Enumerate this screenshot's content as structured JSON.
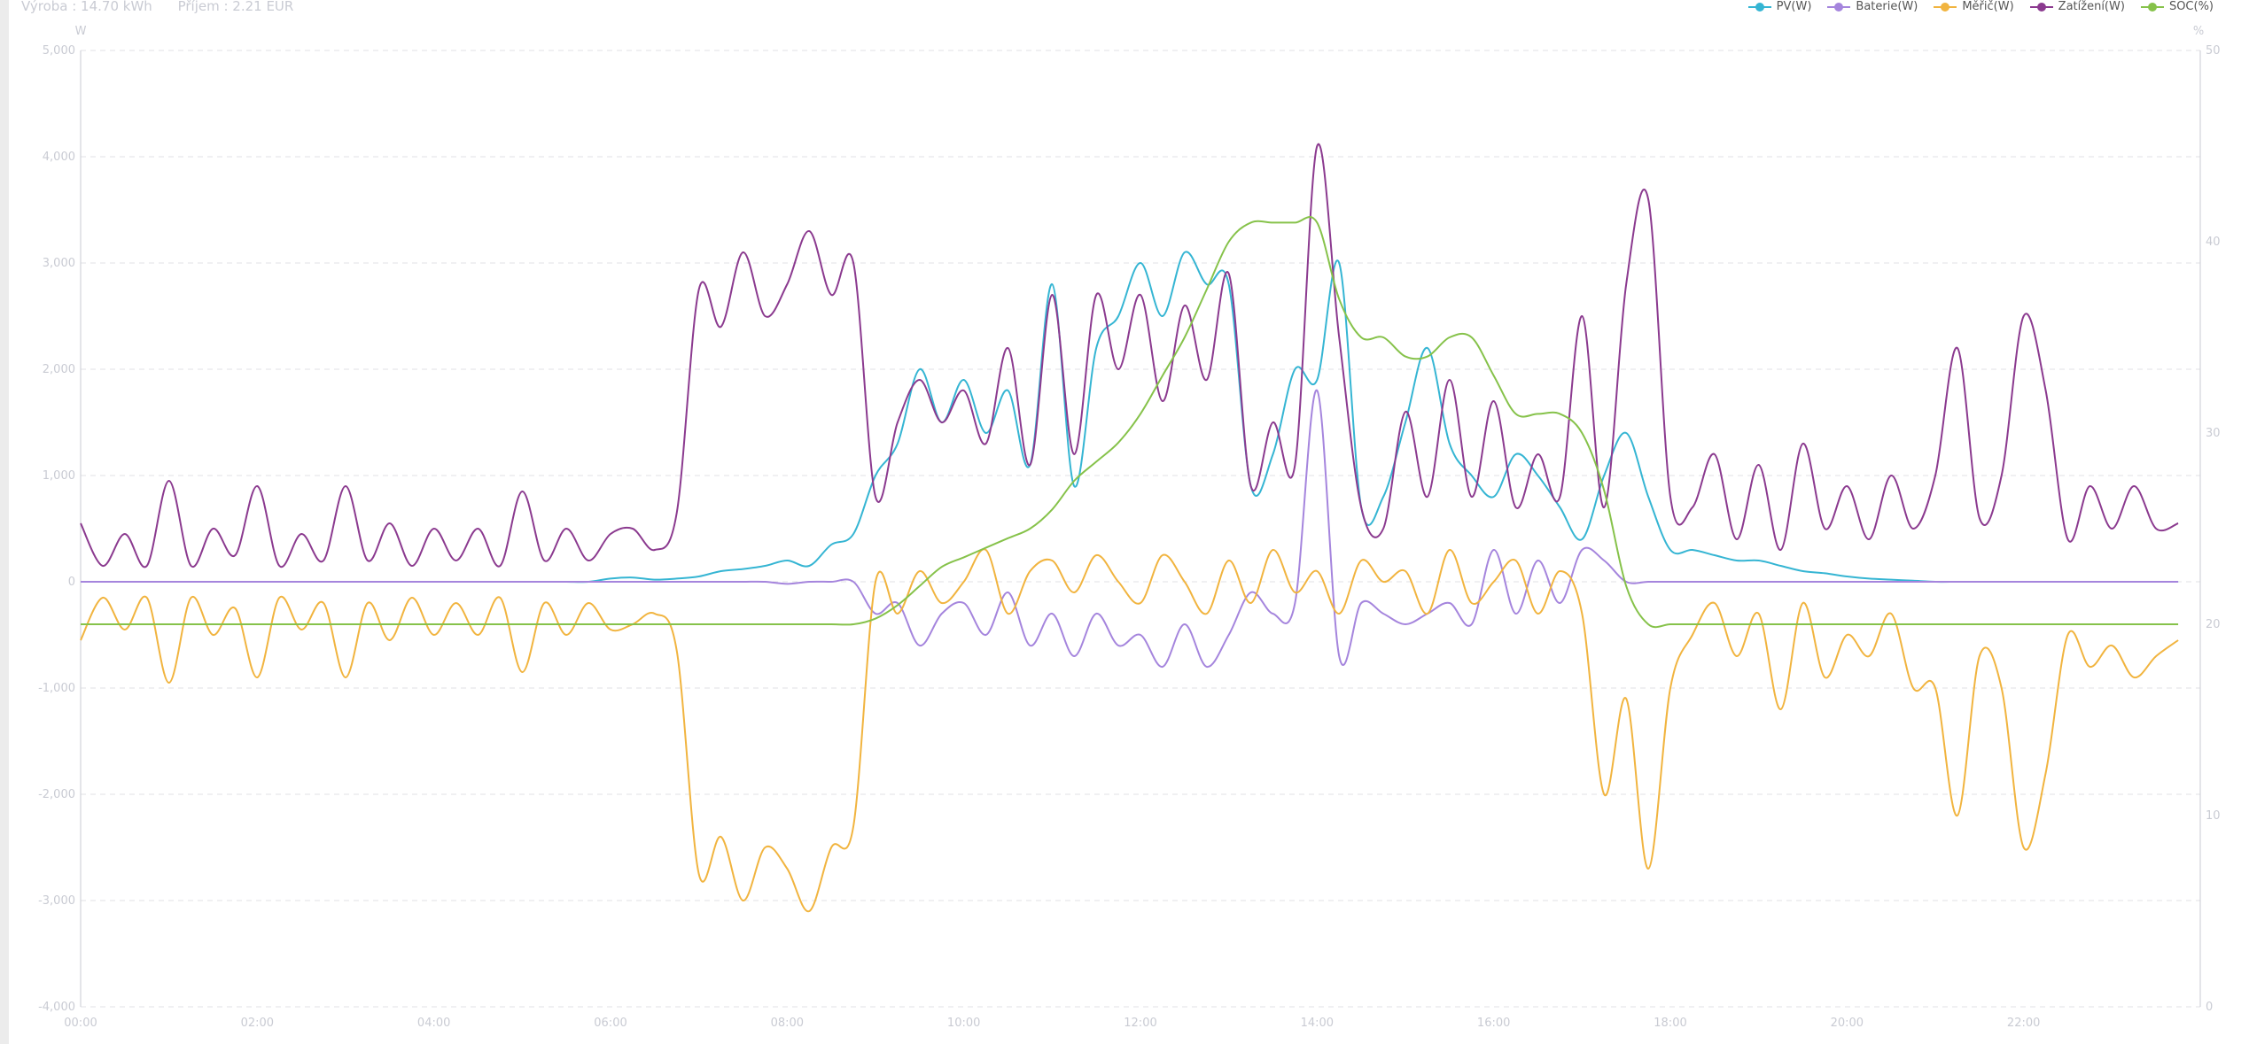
{
  "summary": {
    "production": "Výroba : 14.70 kWh",
    "income": "Příjem : 2.21 EUR"
  },
  "chart_data": {
    "type": "line",
    "x_start_hours": 0,
    "x_step_hours": 0.25,
    "x_ticks": [
      "00:00",
      "02:00",
      "04:00",
      "06:00",
      "08:00",
      "10:00",
      "12:00",
      "14:00",
      "16:00",
      "18:00",
      "20:00",
      "22:00"
    ],
    "y_left": {
      "label": "W",
      "range": [
        -4000,
        5000
      ],
      "ticks": [
        "-4,000",
        "-3,000",
        "-2,000",
        "-1,000",
        "0",
        "1,000",
        "2,000",
        "3,000",
        "4,000",
        "5,000"
      ]
    },
    "y_right": {
      "label": "%",
      "range": [
        0,
        50
      ],
      "ticks": [
        "0",
        "10",
        "20",
        "30",
        "40",
        "50"
      ]
    },
    "grid": true,
    "legend_position": "top-right",
    "series": [
      {
        "name": "PV(W)",
        "axis": "left",
        "color": "#35b5d3",
        "values": [
          0,
          0,
          0,
          0,
          0,
          0,
          0,
          0,
          0,
          0,
          0,
          0,
          0,
          0,
          0,
          0,
          0,
          0,
          0,
          0,
          0,
          0,
          0,
          0,
          30,
          40,
          20,
          30,
          50,
          100,
          120,
          150,
          200,
          150,
          350,
          450,
          1000,
          1300,
          2000,
          1500,
          1900,
          1400,
          1800,
          1100,
          2800,
          900,
          2200,
          2500,
          3000,
          2500,
          3100,
          2800,
          2800,
          900,
          1200,
          2000,
          1900,
          3000,
          700,
          800,
          1500,
          2200,
          1300,
          1000,
          800,
          1200,
          1000,
          700,
          400,
          1000,
          1400,
          800,
          300,
          300,
          250,
          200,
          200,
          150,
          100,
          80,
          50,
          30,
          20,
          10,
          0,
          0,
          0,
          0,
          0,
          0,
          0,
          0,
          0,
          0,
          0,
          0
        ]
      },
      {
        "name": "Baterie(W)",
        "axis": "left",
        "color": "#a585dd",
        "values": [
          0,
          0,
          0,
          0,
          0,
          0,
          0,
          0,
          0,
          0,
          0,
          0,
          0,
          0,
          0,
          0,
          0,
          0,
          0,
          0,
          0,
          0,
          0,
          0,
          0,
          0,
          0,
          0,
          0,
          0,
          0,
          0,
          -20,
          0,
          0,
          0,
          -300,
          -200,
          -600,
          -300,
          -200,
          -500,
          -100,
          -600,
          -300,
          -700,
          -300,
          -600,
          -500,
          -800,
          -400,
          -800,
          -500,
          -100,
          -300,
          -200,
          1800,
          -700,
          -200,
          -300,
          -400,
          -300,
          -200,
          -400,
          300,
          -300,
          200,
          -200,
          300,
          200,
          0,
          0,
          0,
          0,
          0,
          0,
          0,
          0,
          0,
          0,
          0,
          0,
          0,
          0,
          0,
          0,
          0,
          0,
          0,
          0,
          0,
          0,
          0,
          0,
          0,
          0
        ]
      },
      {
        "name": "Měřič(W)",
        "axis": "left",
        "color": "#f1b43f",
        "values": [
          -550,
          -150,
          -450,
          -150,
          -950,
          -150,
          -500,
          -250,
          -900,
          -150,
          -450,
          -200,
          -900,
          -200,
          -550,
          -150,
          -500,
          -200,
          -500,
          -150,
          -850,
          -200,
          -500,
          -200,
          -450,
          -400,
          -300,
          -650,
          -2750,
          -2400,
          -3000,
          -2500,
          -2700,
          -3100,
          -2500,
          -2300,
          0,
          -300,
          100,
          -200,
          0,
          300,
          -300,
          100,
          200,
          -100,
          250,
          0,
          -200,
          250,
          0,
          -300,
          200,
          -200,
          300,
          -100,
          100,
          -300,
          200,
          0,
          100,
          -300,
          300,
          -200,
          0,
          200,
          -300,
          100,
          -300,
          -2000,
          -1100,
          -2700,
          -1000,
          -500,
          -200,
          -700,
          -300,
          -1200,
          -200,
          -900,
          -500,
          -700,
          -300,
          -1000,
          -1000,
          -2200,
          -700,
          -1000,
          -2500,
          -1800,
          -500,
          -800,
          -600,
          -900,
          -700,
          -550
        ]
      },
      {
        "name": "Zatížení(W)",
        "axis": "left",
        "color": "#8b3a8f",
        "values": [
          550,
          150,
          450,
          150,
          950,
          150,
          500,
          250,
          900,
          150,
          450,
          200,
          900,
          200,
          550,
          150,
          500,
          200,
          500,
          150,
          850,
          200,
          500,
          200,
          450,
          500,
          300,
          650,
          2750,
          2400,
          3100,
          2500,
          2800,
          3300,
          2700,
          3000,
          800,
          1500,
          1900,
          1500,
          1800,
          1300,
          2200,
          1100,
          2700,
          1200,
          2700,
          2000,
          2700,
          1700,
          2600,
          1900,
          2900,
          900,
          1500,
          1100,
          4100,
          2300,
          700,
          500,
          1600,
          800,
          1900,
          800,
          1700,
          700,
          1200,
          800,
          2500,
          700,
          2800,
          3600,
          800,
          700,
          1200,
          400,
          1100,
          300,
          1300,
          500,
          900,
          400,
          1000,
          500,
          1000,
          2200,
          600,
          1000,
          2500,
          1800,
          400,
          900,
          500,
          900,
          500,
          550
        ]
      },
      {
        "name": "SOC(%)",
        "axis": "right",
        "color": "#86c24a",
        "values": [
          20,
          20,
          20,
          20,
          20,
          20,
          20,
          20,
          20,
          20,
          20,
          20,
          20,
          20,
          20,
          20,
          20,
          20,
          20,
          20,
          20,
          20,
          20,
          20,
          20,
          20,
          20,
          20,
          20,
          20,
          20,
          20,
          20,
          20,
          20,
          20,
          20.3,
          21,
          22,
          23,
          23.5,
          24,
          24.5,
          25,
          26,
          27.5,
          28.5,
          29.5,
          31,
          33,
          35,
          37.5,
          40,
          41,
          41,
          41,
          41,
          37,
          35,
          35,
          34,
          34,
          35,
          35,
          33,
          31,
          31,
          31,
          30,
          27,
          22,
          20,
          20,
          20,
          20,
          20,
          20,
          20,
          20,
          20,
          20,
          20,
          20,
          20,
          20,
          20,
          20,
          20,
          20,
          20,
          20,
          20,
          20,
          20,
          20,
          20
        ]
      }
    ]
  }
}
